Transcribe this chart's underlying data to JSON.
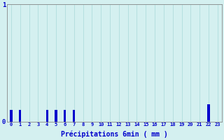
{
  "xlabel": "Précipitations 6min ( mm )",
  "ylabel": "",
  "background_color": "#d4f0f0",
  "bar_color": "#0000cc",
  "ylim": [
    0,
    1.0
  ],
  "xlim": [
    -0.5,
    23.5
  ],
  "yticks": [
    0,
    1
  ],
  "xtick_labels": [
    "0",
    "1",
    "2",
    "3",
    "4",
    "5",
    "6",
    "7",
    "8",
    "9",
    "10",
    "11",
    "12",
    "13",
    "14",
    "15",
    "16",
    "17",
    "18",
    "19",
    "20",
    "21",
    "22",
    "23"
  ],
  "values": [
    0.1,
    0.1,
    0,
    0,
    0.1,
    0.1,
    0.1,
    0.1,
    0,
    0,
    0,
    0,
    0,
    0,
    0,
    0,
    0,
    0,
    0,
    0,
    0,
    0,
    0.15,
    0
  ],
  "grid_color": "#a8d8d8",
  "axis_color": "#888888"
}
